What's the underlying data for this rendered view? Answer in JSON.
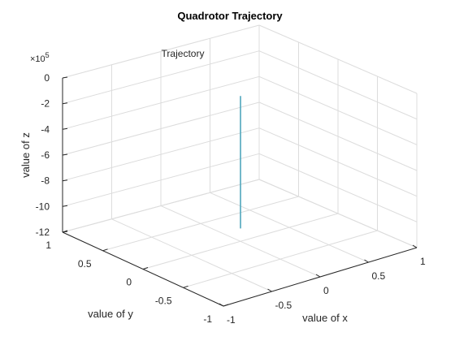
{
  "chart_data": {
    "type": "line",
    "title": "Quadrotor Trajectory",
    "xlabel": "value of x",
    "ylabel": "value of y",
    "zlabel": "value of z",
    "z_exponent": "×10^5",
    "z_exponent_prefix": "×10",
    "z_exponent_power": "5",
    "xlim": [
      -1,
      1
    ],
    "ylim": [
      -1,
      1
    ],
    "zlim": [
      -1200000,
      0
    ],
    "x_ticks": [
      -1,
      -0.5,
      0,
      0.5,
      1
    ],
    "x_tick_labels": [
      "-1",
      "-0.5",
      "0",
      "0.5",
      "1"
    ],
    "y_ticks": [
      -1,
      -0.5,
      0,
      0.5,
      1
    ],
    "y_tick_labels": [
      "-1",
      "-0.5",
      "0",
      "0.5",
      "1"
    ],
    "z_ticks": [
      0,
      -200000,
      -400000,
      -600000,
      -800000,
      -1000000,
      -1200000
    ],
    "z_tick_labels": [
      "0",
      "-2",
      "-4",
      "-6",
      "-8",
      "-10",
      "-12"
    ],
    "grid": true,
    "legend_position": "top",
    "series": [
      {
        "name": "Trajectory",
        "color": "#4fa7bd",
        "x": [
          0,
          0
        ],
        "y": [
          0,
          0
        ],
        "z": [
          -70000,
          -1100000
        ]
      }
    ]
  }
}
